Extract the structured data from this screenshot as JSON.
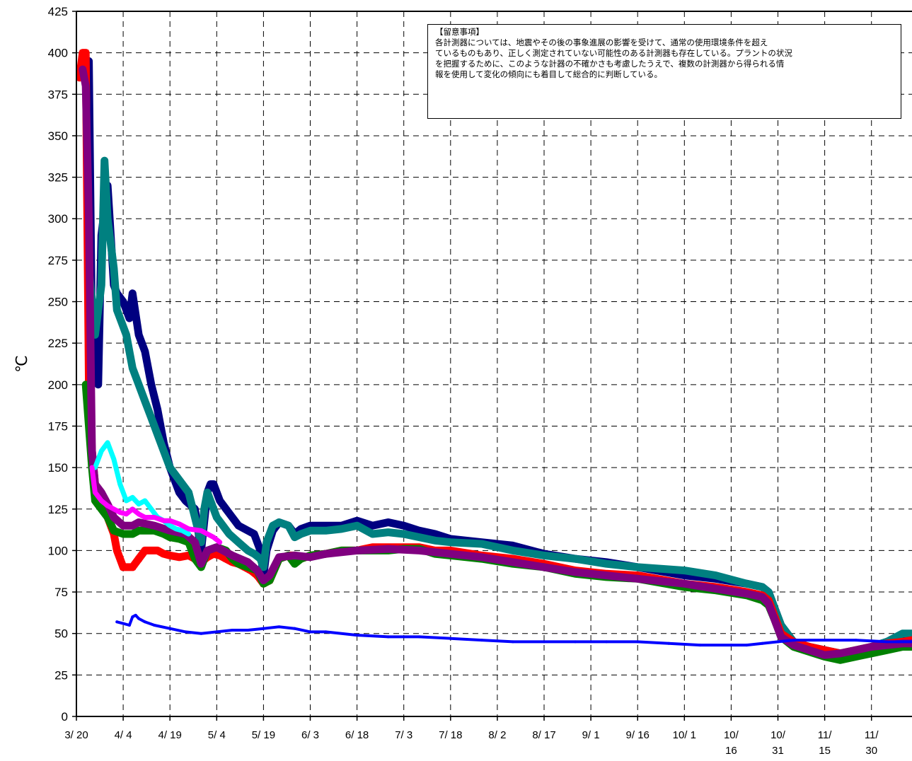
{
  "chart_data": {
    "type": "line",
    "title": "",
    "ylabel": "℃",
    "xlabel": "",
    "ylim": [
      0,
      425
    ],
    "y_ticks": [
      0,
      25,
      50,
      75,
      100,
      125,
      150,
      175,
      200,
      225,
      250,
      275,
      300,
      325,
      350,
      375,
      400,
      425
    ],
    "x_tick_labels": [
      [
        "3/ 20"
      ],
      [
        "4/ 4"
      ],
      [
        "4/ 19"
      ],
      [
        "5/ 4"
      ],
      [
        "5/ 19"
      ],
      [
        "6/ 3"
      ],
      [
        "6/ 18"
      ],
      [
        "7/ 3"
      ],
      [
        "7/ 18"
      ],
      [
        "8/ 2"
      ],
      [
        "8/ 17"
      ],
      [
        "9/ 1"
      ],
      [
        "9/ 16"
      ],
      [
        "10/ 1"
      ],
      [
        "10/",
        "16"
      ],
      [
        "10/",
        "31"
      ],
      [
        "11/",
        "15"
      ],
      [
        "11/",
        "30"
      ]
    ],
    "x_tick_days": [
      0,
      15,
      30,
      45,
      60,
      75,
      90,
      105,
      120,
      135,
      150,
      165,
      180,
      195,
      210,
      225,
      240,
      255
    ],
    "x_range_days": [
      0,
      268
    ],
    "grid": true,
    "legend": "none",
    "series": [
      {
        "color": "#000080",
        "marker": "circle",
        "x": [
          3,
          4,
          5,
          7,
          8,
          10,
          12,
          13,
          15,
          17,
          18,
          20,
          22,
          24,
          26,
          28,
          30,
          33,
          35,
          38,
          40,
          42,
          43,
          44,
          46,
          48,
          50,
          52,
          55,
          57,
          59,
          60,
          61,
          63,
          65,
          68,
          70,
          72,
          75,
          80,
          85,
          90,
          95,
          100,
          105,
          110,
          115,
          120,
          130,
          140,
          150,
          160,
          170,
          180,
          195,
          205,
          215,
          220,
          222,
          224,
          226,
          230,
          235,
          240,
          245,
          250,
          255,
          260,
          265,
          268
        ],
        "y": [
          385,
          395,
          230,
          200,
          290,
          320,
          260,
          255,
          250,
          240,
          255,
          230,
          220,
          200,
          185,
          165,
          150,
          135,
          130,
          125,
          100,
          135,
          140,
          140,
          130,
          125,
          120,
          115,
          112,
          110,
          100,
          85,
          100,
          112,
          117,
          115,
          110,
          113,
          115,
          115,
          115,
          118,
          115,
          117,
          115,
          112,
          110,
          107,
          105,
          103,
          98,
          95,
          93,
          90,
          85,
          83,
          80,
          78,
          75,
          65,
          55,
          45,
          42,
          40,
          38,
          40,
          42,
          45,
          48,
          48
        ]
      },
      {
        "color": "#008080",
        "marker": "circle",
        "x": [
          4,
          6,
          8,
          9,
          10,
          12,
          13,
          14,
          16,
          18,
          20,
          22,
          24,
          26,
          28,
          30,
          32,
          34,
          36,
          38,
          40,
          41,
          42,
          43,
          45,
          47,
          49,
          52,
          55,
          57,
          59,
          60,
          61,
          63,
          65,
          68,
          70,
          72,
          75,
          80,
          85,
          90,
          95,
          100,
          105,
          110,
          115,
          120,
          130,
          140,
          150,
          160,
          170,
          180,
          195,
          205,
          215,
          220,
          222,
          224,
          226,
          230,
          235,
          240,
          245,
          250,
          255,
          260,
          265,
          268
        ],
        "y": [
          270,
          230,
          260,
          335,
          300,
          270,
          245,
          240,
          230,
          210,
          200,
          190,
          180,
          170,
          160,
          150,
          145,
          140,
          135,
          120,
          105,
          125,
          135,
          130,
          120,
          115,
          110,
          105,
          100,
          98,
          95,
          90,
          105,
          115,
          117,
          115,
          108,
          110,
          112,
          112,
          113,
          115,
          110,
          111,
          110,
          108,
          106,
          105,
          104,
          100,
          97,
          95,
          92,
          90,
          88,
          85,
          80,
          78,
          75,
          65,
          55,
          45,
          42,
          40,
          38,
          40,
          42,
          45,
          50,
          50
        ]
      },
      {
        "color": "#ff0000",
        "marker": "square",
        "x": [
          1,
          2,
          3,
          4,
          5,
          6,
          7,
          8,
          9,
          10,
          11,
          12,
          13,
          14,
          15,
          16,
          18,
          20,
          22,
          24,
          26,
          28,
          30,
          33,
          36,
          38,
          40,
          42,
          44,
          46,
          48,
          50,
          52,
          54,
          56,
          58,
          60,
          62,
          65,
          68,
          70,
          72,
          75,
          80,
          85,
          90,
          95,
          100,
          105,
          110,
          115,
          120,
          130,
          140,
          150,
          160,
          170,
          180,
          195,
          205,
          215,
          220,
          222,
          224,
          226,
          230,
          235,
          240,
          245,
          250,
          255,
          260,
          265,
          268
        ],
        "y": [
          385,
          400,
          400,
          200,
          160,
          140,
          135,
          130,
          125,
          120,
          115,
          110,
          100,
          95,
          90,
          90,
          90,
          95,
          100,
          100,
          100,
          98,
          97,
          96,
          97,
          95,
          93,
          96,
          98,
          97,
          95,
          93,
          92,
          90,
          88,
          85,
          80,
          82,
          95,
          97,
          97,
          95,
          97,
          98,
          100,
          100,
          102,
          102,
          102,
          102,
          100,
          100,
          97,
          95,
          92,
          88,
          86,
          85,
          80,
          78,
          75,
          73,
          70,
          60,
          50,
          45,
          42,
          40,
          38,
          40,
          42,
          44,
          45,
          46
        ]
      },
      {
        "color": "#008000",
        "marker": "plus",
        "x": [
          3,
          5,
          6,
          8,
          10,
          12,
          15,
          18,
          20,
          22,
          25,
          28,
          30,
          33,
          36,
          38,
          40,
          42,
          45,
          48,
          50,
          52,
          55,
          58,
          60,
          62,
          65,
          68,
          70,
          72,
          75,
          80,
          85,
          90,
          95,
          100,
          105,
          110,
          115,
          120,
          130,
          140,
          150,
          160,
          170,
          180,
          195,
          205,
          215,
          220,
          222,
          224,
          226,
          230,
          235,
          240,
          245,
          250,
          255,
          260,
          265,
          268
        ],
        "y": [
          200,
          150,
          130,
          125,
          120,
          112,
          110,
          110,
          112,
          112,
          112,
          110,
          108,
          107,
          105,
          95,
          90,
          100,
          102,
          100,
          95,
          92,
          90,
          88,
          80,
          82,
          95,
          97,
          92,
          95,
          97,
          98,
          100,
          100,
          100,
          100,
          101,
          101,
          98,
          97,
          95,
          92,
          90,
          86,
          84,
          83,
          78,
          76,
          73,
          70,
          67,
          58,
          48,
          42,
          39,
          36,
          34,
          36,
          38,
          40,
          42,
          42
        ]
      },
      {
        "color": "#800080",
        "marker": "x",
        "x": [
          2,
          3,
          4,
          5,
          6,
          8,
          10,
          12,
          15,
          18,
          20,
          25,
          30,
          35,
          38,
          40,
          42,
          45,
          50,
          55,
          58,
          60,
          62,
          65,
          70,
          75,
          80,
          90,
          100,
          110,
          120,
          130,
          140,
          150,
          160,
          170,
          180,
          195,
          205,
          215,
          220,
          222,
          224,
          226,
          230,
          235,
          240,
          245,
          250,
          255,
          260,
          265,
          268
        ],
        "y": [
          390,
          380,
          300,
          160,
          140,
          135,
          128,
          120,
          115,
          115,
          117,
          115,
          112,
          110,
          105,
          92,
          100,
          102,
          97,
          93,
          88,
          82,
          85,
          96,
          97,
          96,
          98,
          100,
          101,
          100,
          98,
          96,
          93,
          90,
          87,
          85,
          83,
          80,
          77,
          74,
          72,
          68,
          58,
          48,
          43,
          40,
          37,
          38,
          40,
          42,
          43,
          44,
          44
        ]
      },
      {
        "color": "#00ffff",
        "marker": "triangle",
        "x": [
          6,
          8,
          10,
          12,
          14,
          16,
          18,
          20,
          22,
          24,
          26,
          28,
          30,
          32,
          34,
          36
        ],
        "y": [
          150,
          160,
          165,
          155,
          140,
          130,
          132,
          128,
          130,
          125,
          120,
          118,
          115,
          113,
          112,
          110
        ]
      },
      {
        "color": "#ff00ff",
        "marker": "x",
        "x": [
          5,
          6,
          8,
          10,
          12,
          14,
          16,
          18,
          20,
          22,
          25,
          28,
          30,
          33,
          36,
          40,
          42,
          44,
          46
        ],
        "y": [
          150,
          135,
          130,
          127,
          125,
          123,
          122,
          125,
          122,
          120,
          120,
          118,
          118,
          116,
          113,
          112,
          110,
          108,
          105
        ]
      },
      {
        "color": "#0000ff",
        "marker": "cross",
        "x": [
          13,
          15,
          17,
          18,
          19,
          20,
          22,
          25,
          30,
          35,
          40,
          45,
          50,
          55,
          60,
          65,
          70,
          75,
          80,
          90,
          100,
          110,
          120,
          130,
          140,
          150,
          160,
          170,
          180,
          190,
          200,
          210,
          215,
          220,
          225,
          230,
          235,
          240,
          250,
          260,
          268
        ],
        "y": [
          57,
          56,
          55,
          60,
          61,
          59,
          57,
          55,
          53,
          51,
          50,
          51,
          52,
          52,
          53,
          54,
          53,
          51,
          51,
          49,
          48,
          48,
          47,
          46,
          45,
          45,
          45,
          45,
          45,
          44,
          43,
          43,
          43,
          44,
          45,
          46,
          46,
          46,
          46,
          45,
          45
        ]
      }
    ]
  },
  "note": {
    "title": "【留意事項】",
    "lines": [
      "各計測器については、地震やその後の事象進展の影響を受けて、通常の使用環境条件を超え",
      "ているものもあり、正しく測定されていない可能性のある計測器も存在している。プラントの状況",
      "を把握するために、このような計器の不確かさも考慮したうえで、複数の計測器から得られる情",
      "報を使用して変化の傾向にも着目して総合的に判断している。"
    ]
  }
}
